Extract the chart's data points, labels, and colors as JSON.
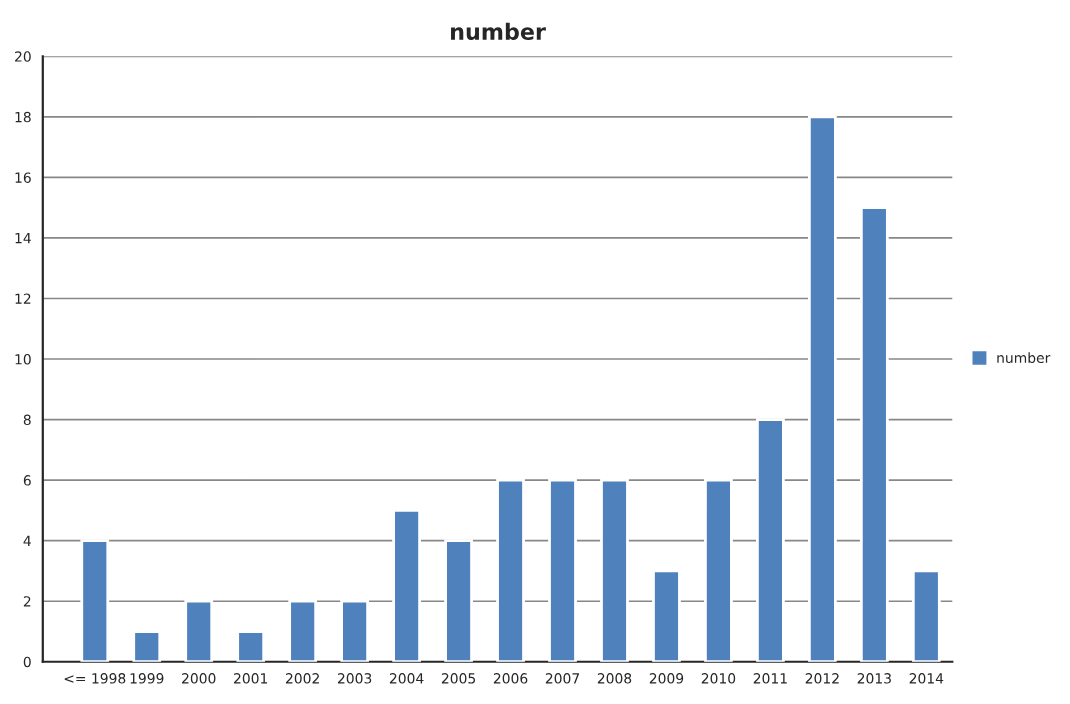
{
  "chart_data": {
    "type": "bar",
    "title": "number",
    "categories": [
      "<= 1998",
      "1999",
      "2000",
      "2001",
      "2002",
      "2003",
      "2004",
      "2005",
      "2006",
      "2007",
      "2008",
      "2009",
      "2010",
      "2011",
      "2012",
      "2013",
      "2014"
    ],
    "series": [
      {
        "name": "number",
        "color": "#4f81bd",
        "values": [
          4,
          1,
          2,
          1,
          2,
          2,
          5,
          4,
          6,
          6,
          6,
          3,
          6,
          8,
          18,
          15,
          3
        ]
      }
    ],
    "ylim": [
      0,
      20
    ],
    "yticks": [
      0,
      2,
      4,
      6,
      8,
      10,
      12,
      14,
      16,
      18,
      20
    ],
    "grid": "y",
    "legend": "right"
  }
}
